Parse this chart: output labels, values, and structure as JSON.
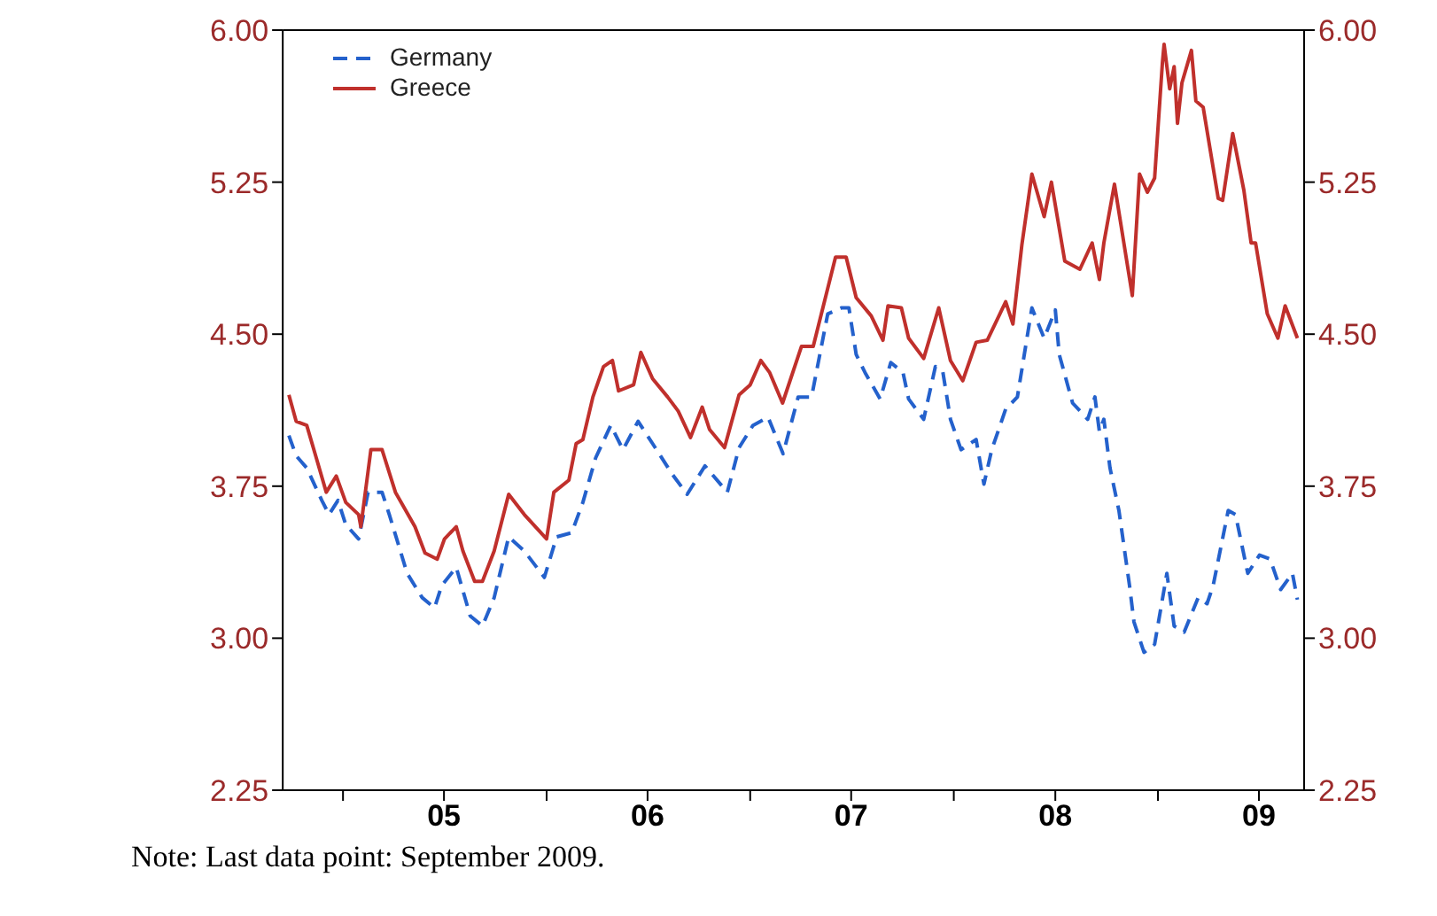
{
  "chart_data": {
    "type": "line",
    "legend": "top left",
    "grid": false,
    "marker": "none",
    "xlim": [
      "2004-09-15",
      "2009-09-20"
    ],
    "xticks": [
      {
        "value": "2005-01-01",
        "label": null
      },
      {
        "value": "2005-07-01",
        "label": "05"
      },
      {
        "value": "2006-01-01",
        "label": null
      },
      {
        "value": "2006-07-01",
        "label": "06"
      },
      {
        "value": "2007-01-01",
        "label": null
      },
      {
        "value": "2007-07-01",
        "label": "07"
      },
      {
        "value": "2008-01-01",
        "label": null
      },
      {
        "value": "2008-07-01",
        "label": "08"
      },
      {
        "value": "2009-01-01",
        "label": null
      },
      {
        "value": "2009-07-01",
        "label": "09"
      }
    ],
    "ylim": [
      2.25,
      6.0
    ],
    "yticks": [
      {
        "value": 2.25,
        "label": "2.25"
      },
      {
        "value": 3,
        "label": "3.00"
      },
      {
        "value": 3.75,
        "label": "3.75"
      },
      {
        "value": 4.5,
        "label": "4.50"
      },
      {
        "value": 5.25,
        "label": "5.25"
      },
      {
        "value": 6,
        "label": "6.00"
      }
    ],
    "y2lim": [
      2.25,
      6.0
    ],
    "y2ticks": [
      {
        "value": 2.25,
        "label": "2.25"
      },
      {
        "value": 3,
        "label": "3.00"
      },
      {
        "value": 3.75,
        "label": "3.75"
      },
      {
        "value": 4.5,
        "label": "4.50"
      },
      {
        "value": 5.25,
        "label": "5.25"
      },
      {
        "value": 6,
        "label": "6.00"
      }
    ],
    "annotations": [
      "Note: Last data point: September 2009."
    ],
    "series": [
      {
        "name": "Germany",
        "color": "#2461cc",
        "line_style": "dashed",
        "x": [
          "2004-09-26",
          "2004-10-09",
          "2004-10-28",
          "2004-11-24",
          "2004-12-07",
          "2004-12-23",
          "2005-01-06",
          "2005-01-29",
          "2005-02-15",
          "2005-03-12",
          "2005-03-25",
          "2005-04-26",
          "2005-05-23",
          "2005-06-14",
          "2005-06-27",
          "2005-07-23",
          "2005-08-17",
          "2005-09-08",
          "2005-09-29",
          "2005-10-25",
          "2005-11-22",
          "2005-12-28",
          "2006-01-19",
          "2006-02-15",
          "2006-03-07",
          "2006-03-30",
          "2006-04-26",
          "2006-05-18",
          "2006-06-14",
          "2006-07-10",
          "2006-08-14",
          "2006-09-10",
          "2006-10-12",
          "2006-11-21",
          "2006-12-12",
          "2007-01-06",
          "2007-02-02",
          "2007-03-01",
          "2007-03-28",
          "2007-04-21",
          "2007-05-20",
          "2007-06-14",
          "2007-06-27",
          "2007-07-10",
          "2007-07-26",
          "2007-08-22",
          "2007-09-10",
          "2007-10-02",
          "2007-10-12",
          "2007-11-08",
          "2007-11-29",
          "2007-12-12",
          "2007-12-26",
          "2008-01-14",
          "2008-02-10",
          "2008-02-24",
          "2008-03-09",
          "2008-04-03",
          "2008-04-24",
          "2008-05-20",
          "2008-06-11",
          "2008-07-01",
          "2008-07-08",
          "2008-08-01",
          "2008-08-28",
          "2008-09-10",
          "2008-09-18",
          "2008-09-26",
          "2008-10-07",
          "2008-10-23",
          "2008-11-11",
          "2008-11-19",
          "2008-12-07",
          "2008-12-26",
          "2009-01-17",
          "2009-01-30",
          "2009-02-17",
          "2009-03-14",
          "2009-03-30",
          "2009-04-10",
          "2009-05-07",
          "2009-05-20",
          "2009-06-11",
          "2009-07-02",
          "2009-07-21",
          "2009-08-09",
          "2009-08-30",
          "2009-09-08"
        ],
        "values": [
          4.0,
          3.9,
          3.84,
          3.68,
          3.61,
          3.68,
          3.56,
          3.49,
          3.72,
          3.72,
          3.61,
          3.32,
          3.2,
          3.15,
          3.26,
          3.35,
          3.11,
          3.06,
          3.2,
          3.5,
          3.43,
          3.3,
          3.5,
          3.52,
          3.67,
          3.89,
          4.05,
          3.93,
          4.07,
          3.96,
          3.81,
          3.71,
          3.85,
          3.72,
          3.94,
          4.05,
          4.09,
          3.91,
          4.19,
          4.19,
          4.6,
          4.63,
          4.63,
          4.4,
          4.31,
          4.18,
          4.36,
          4.31,
          4.18,
          4.08,
          4.34,
          4.32,
          4.08,
          3.93,
          3.98,
          3.76,
          3.93,
          4.13,
          4.19,
          4.63,
          4.48,
          4.62,
          4.4,
          4.16,
          4.08,
          4.19,
          4.02,
          4.08,
          3.84,
          3.63,
          3.26,
          3.08,
          2.93,
          2.97,
          3.32,
          3.06,
          3.03,
          3.2,
          3.17,
          3.26,
          3.63,
          3.61,
          3.32,
          3.41,
          3.39,
          3.24,
          3.32,
          3.19
        ]
      },
      {
        "name": "Greece",
        "color": "#c0302c",
        "line_style": "solid",
        "x": [
          "2004-09-26",
          "2004-10-09",
          "2004-10-28",
          "2004-11-13",
          "2004-12-02",
          "2004-12-20",
          "2005-01-06",
          "2005-01-29",
          "2005-02-02",
          "2005-02-20",
          "2005-03-12",
          "2005-04-05",
          "2005-05-10",
          "2005-05-28",
          "2005-06-19",
          "2005-07-02",
          "2005-07-23",
          "2005-08-04",
          "2005-08-25",
          "2005-09-08",
          "2005-09-29",
          "2005-10-25",
          "2005-11-22",
          "2006-01-01",
          "2006-01-14",
          "2006-02-10",
          "2006-02-23",
          "2006-03-07",
          "2006-03-25",
          "2006-04-13",
          "2006-04-29",
          "2006-05-10",
          "2006-06-06",
          "2006-06-19",
          "2006-07-10",
          "2006-08-06",
          "2006-08-25",
          "2006-09-16",
          "2006-10-07",
          "2006-10-20",
          "2006-11-16",
          "2006-12-12",
          "2007-01-01",
          "2007-01-20",
          "2007-02-05",
          "2007-02-28",
          "2007-04-03",
          "2007-04-24",
          "2007-06-03",
          "2007-06-22",
          "2007-07-10",
          "2007-08-06",
          "2007-08-27",
          "2007-09-05",
          "2007-09-29",
          "2007-10-12",
          "2007-11-08",
          "2007-12-05",
          "2007-12-26",
          "2008-01-17",
          "2008-02-10",
          "2008-03-01",
          "2008-04-03",
          "2008-04-16",
          "2008-05-02",
          "2008-05-20",
          "2008-06-11",
          "2008-06-24",
          "2008-07-18",
          "2008-08-14",
          "2008-09-05",
          "2008-09-18",
          "2008-09-26",
          "2008-10-15",
          "2008-11-16",
          "2008-11-29",
          "2008-12-13",
          "2008-12-26",
          "2009-01-09",
          "2009-01-12",
          "2009-01-22",
          "2009-01-30",
          "2009-02-05",
          "2009-02-13",
          "2009-03-02",
          "2009-03-10",
          "2009-03-23",
          "2009-04-19",
          "2009-04-27",
          "2009-05-15",
          "2009-06-04",
          "2009-06-17",
          "2009-06-25",
          "2009-07-16",
          "2009-08-04",
          "2009-08-17",
          "2009-09-08"
        ],
        "values": [
          4.2,
          4.07,
          4.05,
          3.9,
          3.72,
          3.8,
          3.67,
          3.61,
          3.55,
          3.93,
          3.93,
          3.72,
          3.55,
          3.42,
          3.39,
          3.49,
          3.55,
          3.43,
          3.28,
          3.28,
          3.43,
          3.71,
          3.61,
          3.49,
          3.72,
          3.78,
          3.96,
          3.98,
          4.19,
          4.34,
          4.37,
          4.22,
          4.25,
          4.41,
          4.28,
          4.19,
          4.12,
          3.99,
          4.14,
          4.03,
          3.94,
          4.2,
          4.25,
          4.37,
          4.31,
          4.16,
          4.44,
          4.44,
          4.88,
          4.88,
          4.68,
          4.59,
          4.47,
          4.64,
          4.63,
          4.48,
          4.38,
          4.63,
          4.37,
          4.27,
          4.46,
          4.47,
          4.66,
          4.55,
          4.94,
          5.29,
          5.08,
          5.25,
          4.86,
          4.82,
          4.95,
          4.77,
          4.95,
          5.24,
          4.69,
          5.29,
          5.2,
          5.27,
          5.84,
          5.93,
          5.71,
          5.82,
          5.54,
          5.74,
          5.9,
          5.65,
          5.62,
          5.17,
          5.16,
          5.49,
          5.21,
          4.95,
          4.95,
          4.6,
          4.48,
          4.64,
          4.48
        ]
      }
    ]
  }
}
